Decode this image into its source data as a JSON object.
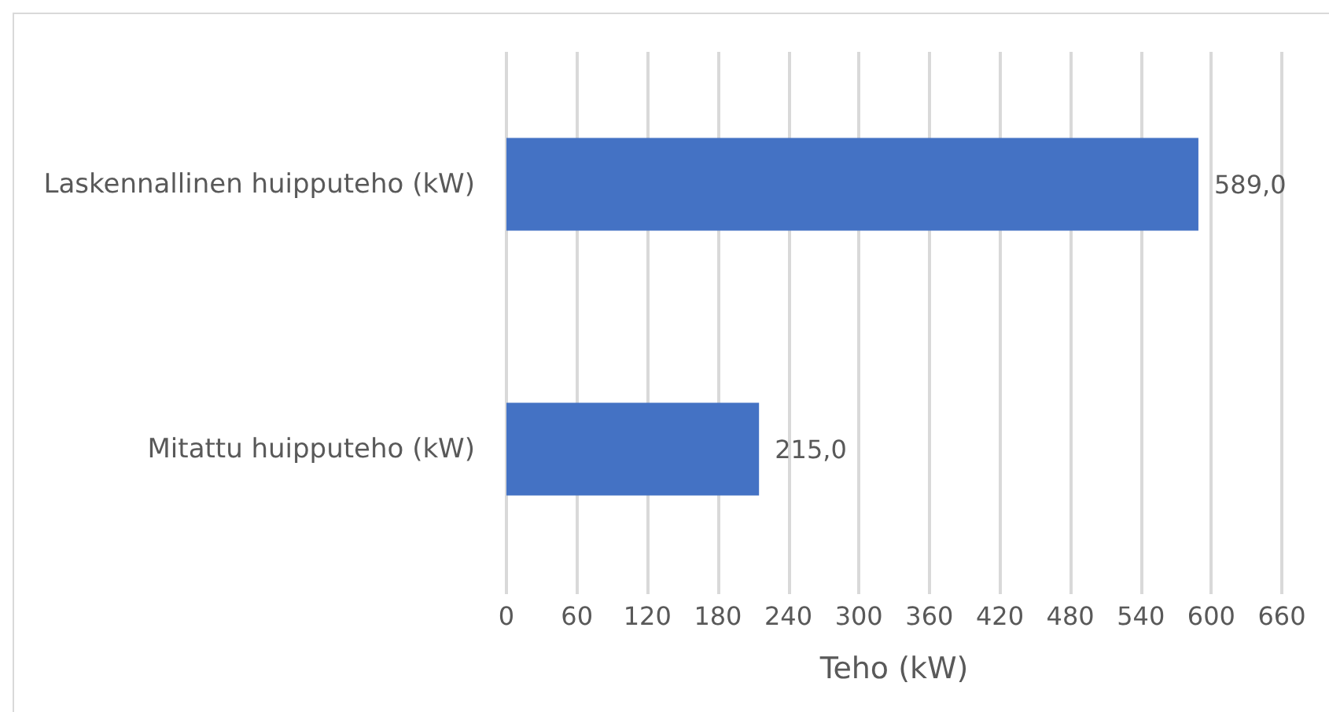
{
  "chart_data": {
    "type": "bar",
    "orientation": "horizontal",
    "categories": [
      "Laskennallinen huipputeho (kW)",
      "Mitattu huipputeho (kW)"
    ],
    "values": [
      589.0,
      215.0
    ],
    "value_labels": [
      "589,0",
      "215,0"
    ],
    "color": "#4472c4",
    "xlabel": "Teho (kW)",
    "xlim": [
      0,
      660
    ],
    "xticks": [
      0,
      60,
      120,
      180,
      240,
      300,
      360,
      420,
      480,
      540,
      600,
      660
    ],
    "grid": "x"
  }
}
